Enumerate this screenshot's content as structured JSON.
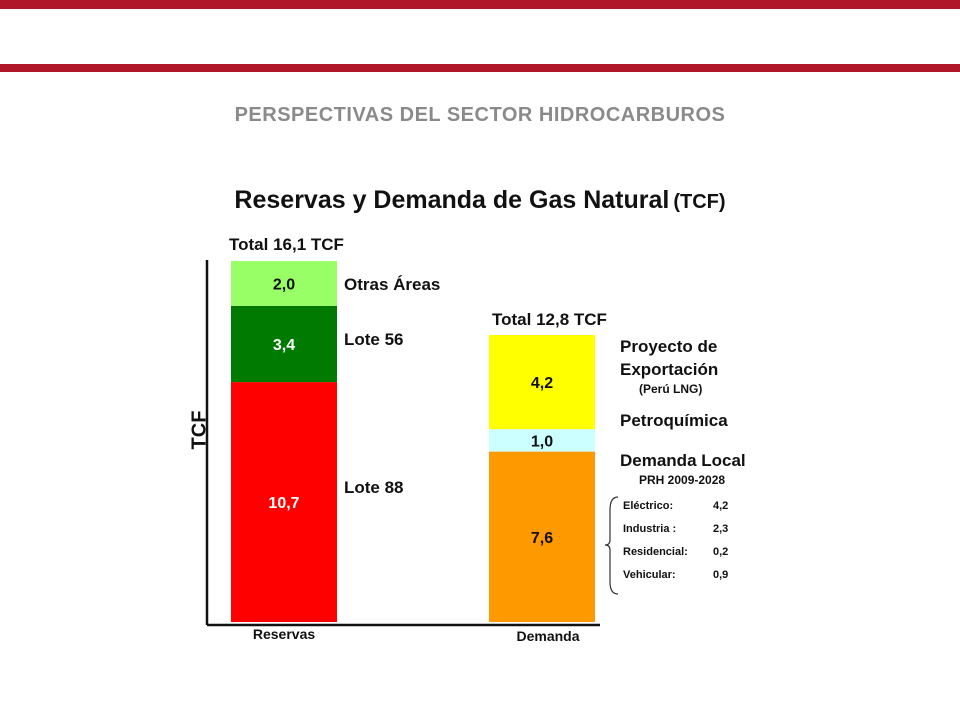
{
  "header": {
    "title": "PERSPECTIVAS DEL SECTOR HIDROCARBUROS"
  },
  "chart_data": {
    "type": "bar",
    "stacked": true,
    "title": "Reservas y Demanda de Gas Natural",
    "title_unit": "(TCF)",
    "ylabel": "TCF",
    "xlabel": "",
    "categories": [
      "Reservas",
      "Demanda"
    ],
    "totals": [
      "Total 16,1 TCF",
      "Total 12,8 TCF"
    ],
    "ylim": [
      0,
      16.1
    ],
    "stacks": [
      {
        "category": "Reservas",
        "segments": [
          {
            "name": "Lote 88",
            "value": 10.7,
            "value_label": "10,7",
            "color": "#ff0000",
            "text_color": "#ffffff"
          },
          {
            "name": "Lote 56",
            "value": 3.4,
            "value_label": "3,4",
            "color": "#007a00",
            "text_color": "#ffffff"
          },
          {
            "name": "Otras Áreas",
            "value": 2.0,
            "value_label": "2,0",
            "color": "#99ff66",
            "text_color": "#111111"
          }
        ]
      },
      {
        "category": "Demanda",
        "segments": [
          {
            "name": "Demanda Local",
            "sublabel": "PRH 2009-2028",
            "value": 7.6,
            "value_label": "7,6",
            "color": "#ff9900",
            "text_color": "#111111"
          },
          {
            "name": "Petroquímica",
            "value": 1.0,
            "value_label": "1,0",
            "color": "#ccffff",
            "text_color": "#111111"
          },
          {
            "name": "Proyecto de Exportación",
            "sublabel": "(Perú LNG)",
            "value": 4.2,
            "value_label": "4,2",
            "color": "#ffff00",
            "text_color": "#111111"
          }
        ]
      }
    ],
    "demanda_local_breakdown": [
      {
        "label": "Eléctrico:",
        "value": "4,2"
      },
      {
        "label": "Industria :",
        "value": "2,3"
      },
      {
        "label": "Residencial:",
        "value": "0,2"
      },
      {
        "label": "Vehicular:",
        "value": "0,9"
      }
    ],
    "grid": false,
    "legend": "none"
  }
}
